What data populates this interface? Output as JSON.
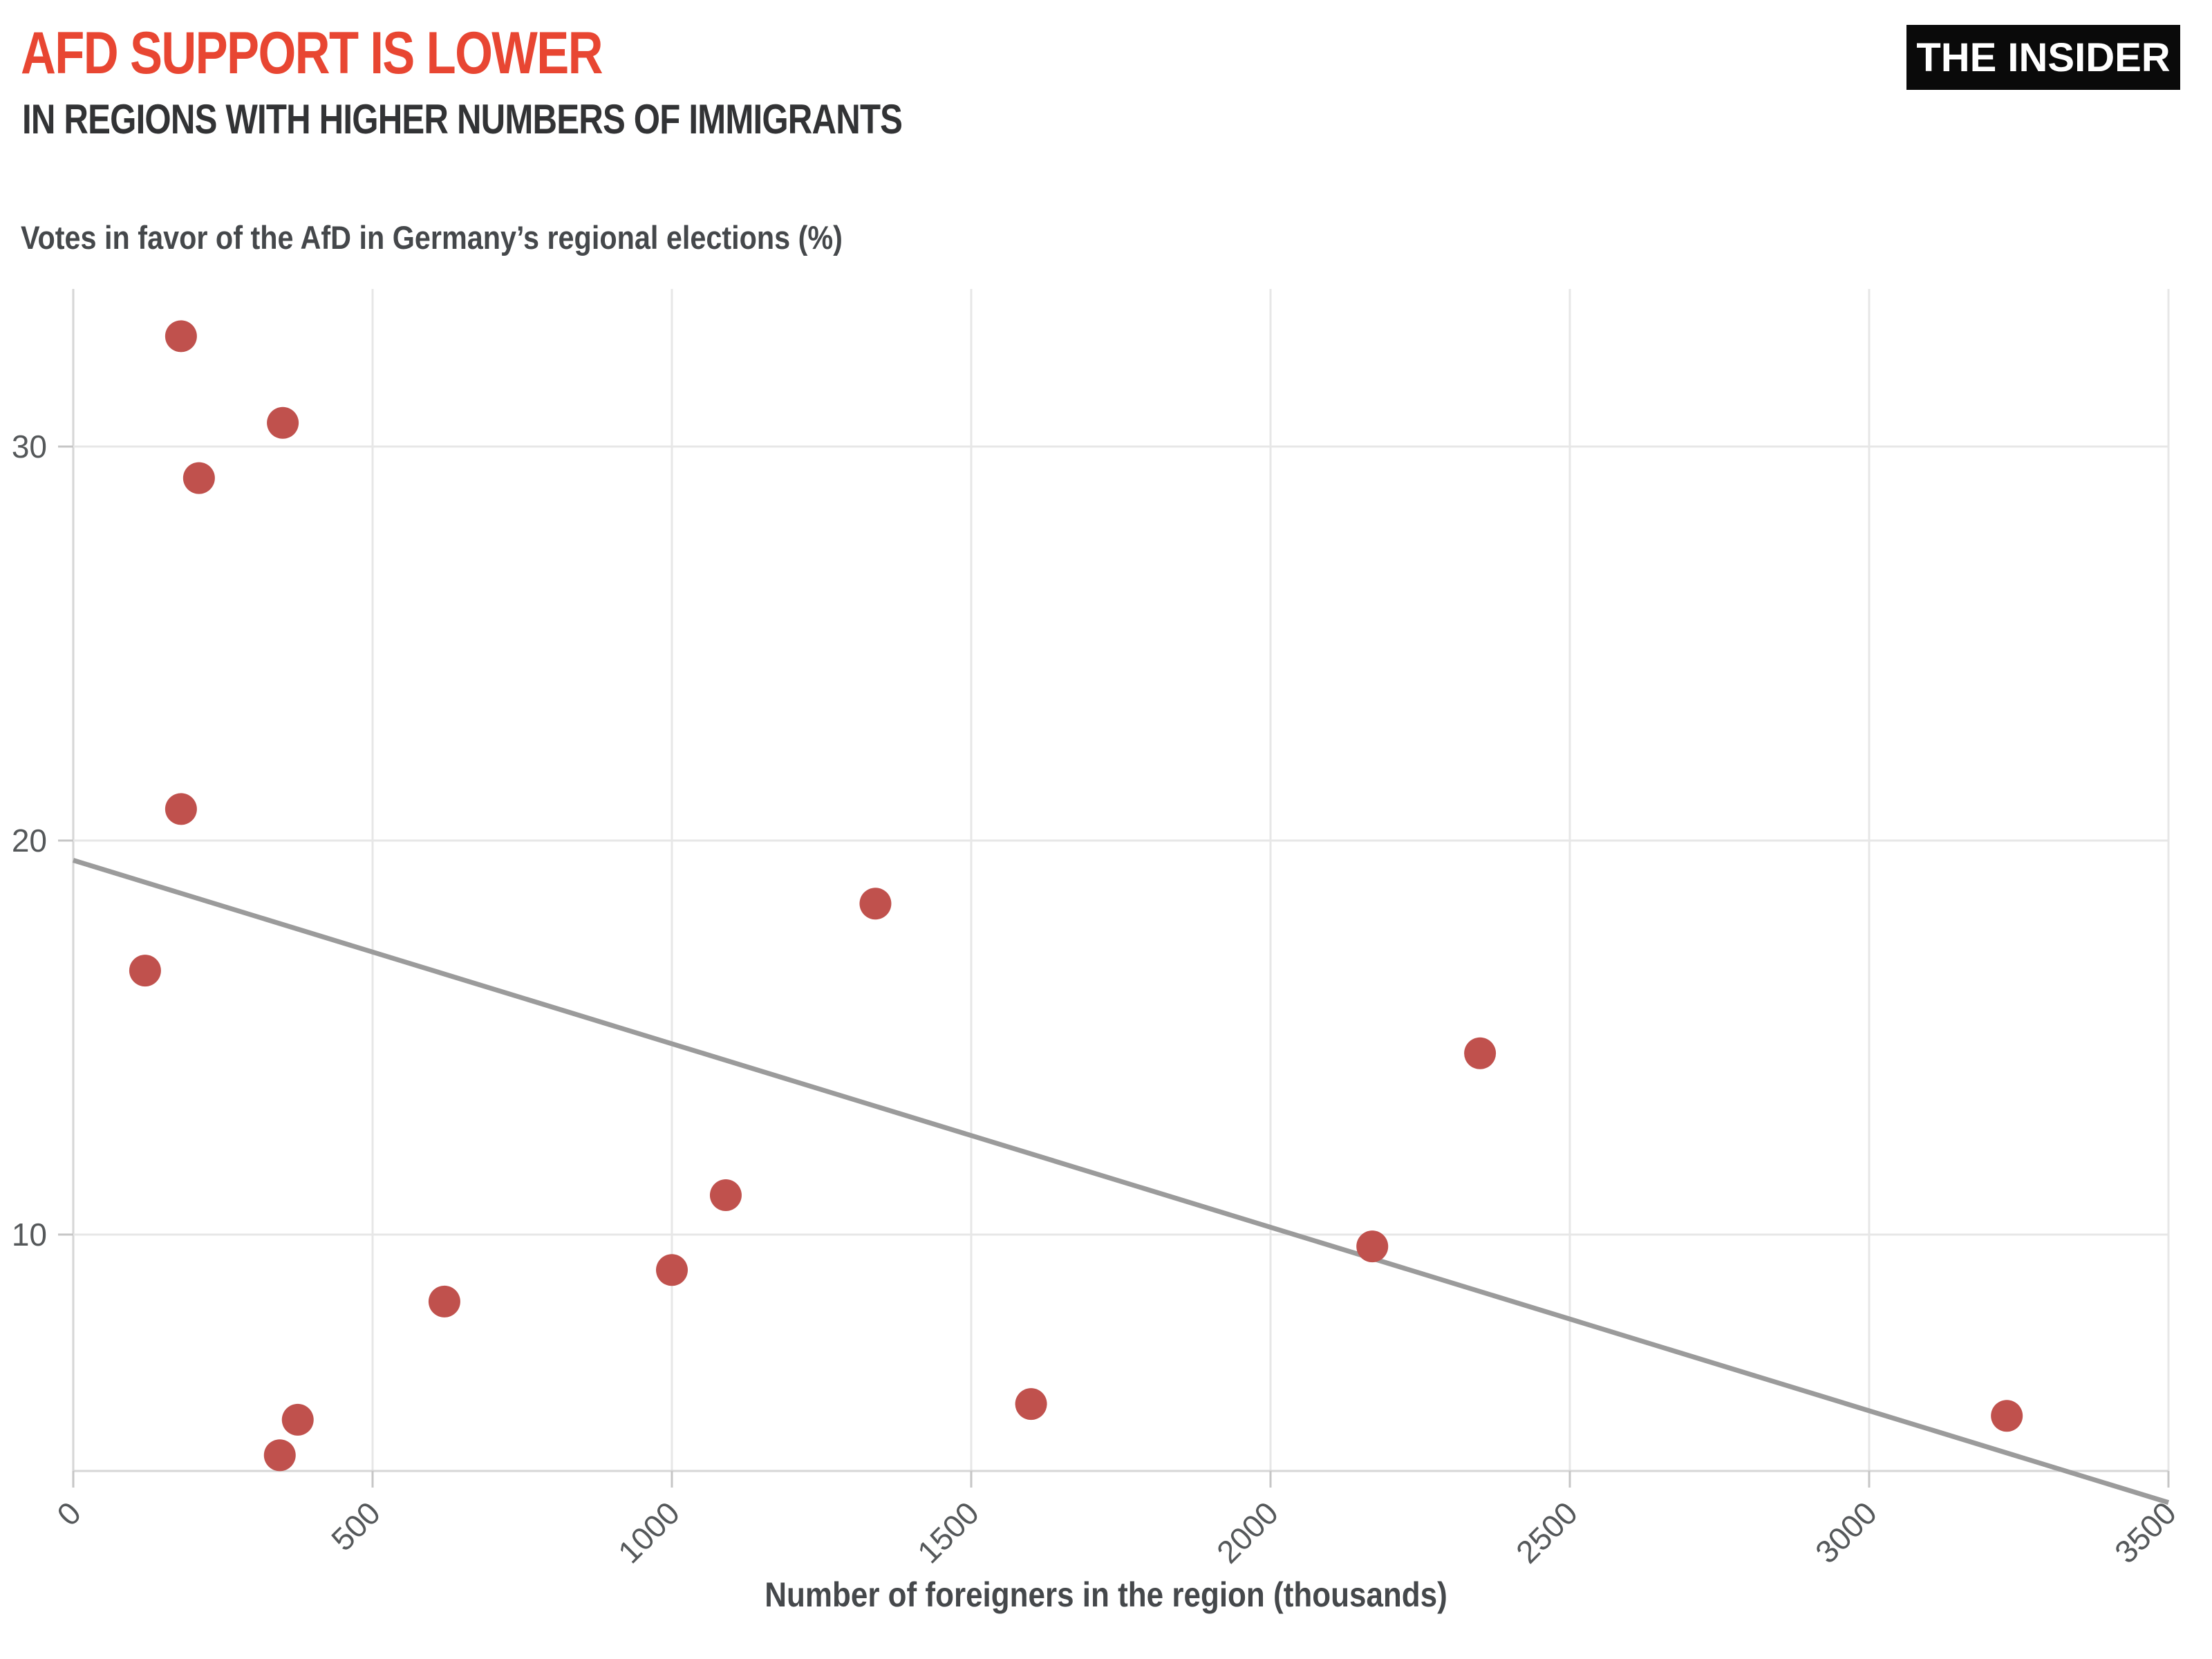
{
  "header": {
    "title": "AFD SUPPORT IS LOWER",
    "subtitle": "IN REGIONS WITH HIGHER NUMBERS OF IMMIGRANTS",
    "logo": "THE INSIDER"
  },
  "chart_data": {
    "type": "scatter",
    "title": "Votes in favor of the AfD in Germany’s regional elections (%)",
    "xlabel": "Number of foreigners in the region (thousands)",
    "ylabel": "Votes in favor of the AfD in Germany’s regional elections (%)",
    "xlim": [
      0,
      3500
    ],
    "ylim": [
      4,
      34
    ],
    "x_ticks": [
      0,
      500,
      1000,
      1500,
      2000,
      2500,
      3000,
      3500
    ],
    "y_ticks": [
      10,
      20,
      30
    ],
    "grid": true,
    "legend": "none",
    "points": [
      {
        "x": 180,
        "y": 32.8
      },
      {
        "x": 350,
        "y": 30.6
      },
      {
        "x": 210,
        "y": 29.2
      },
      {
        "x": 180,
        "y": 20.8
      },
      {
        "x": 120,
        "y": 16.7
      },
      {
        "x": 1340,
        "y": 18.4
      },
      {
        "x": 2350,
        "y": 14.6
      },
      {
        "x": 1090,
        "y": 11.0
      },
      {
        "x": 2170,
        "y": 9.7
      },
      {
        "x": 1000,
        "y": 9.1
      },
      {
        "x": 620,
        "y": 8.3
      },
      {
        "x": 1600,
        "y": 5.7
      },
      {
        "x": 3230,
        "y": 5.4
      },
      {
        "x": 375,
        "y": 5.3
      },
      {
        "x": 345,
        "y": 4.4
      }
    ],
    "trendline": {
      "x": [
        0,
        3500
      ],
      "y": [
        19.5,
        3.2
      ]
    },
    "colors": {
      "point": "#c0514d",
      "trend": "#9b9b9b",
      "accent": "#e84632",
      "grid": "#e7e7e7",
      "axis": "#d6d6d6",
      "tick": "#c6c6c6",
      "tick_label": "#55585a"
    }
  }
}
